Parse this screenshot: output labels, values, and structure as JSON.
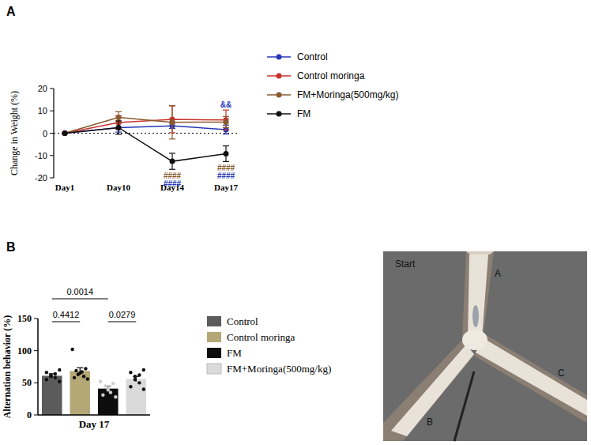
{
  "panel_labels": [
    "A",
    "B"
  ],
  "chart_data": [
    {
      "type": "line",
      "y_label": "Change in Weight (%)",
      "categories": [
        "Day1",
        "Day10",
        "Day14",
        "Day17"
      ],
      "ylim": [
        -20,
        20
      ],
      "yticks": [
        -20,
        -10,
        0,
        10,
        20
      ],
      "marker": "circle",
      "legend": "right",
      "series": [
        {
          "name": "Control",
          "color": "#2638b8",
          "values": [
            0,
            2.5,
            3.3,
            1.6
          ],
          "errors": [
            0,
            2,
            1.2,
            2
          ]
        },
        {
          "name": "Control moringa",
          "color": "#c8312b",
          "values": [
            0,
            4.8,
            6.2,
            5.9
          ],
          "errors": [
            0,
            3,
            6,
            4.5
          ]
        },
        {
          "name": "FM+Moringa(500mg/kg)",
          "color": "#8a5a2e",
          "values": [
            0,
            7.1,
            4.9,
            5
          ],
          "errors": [
            0,
            2.5,
            7.5,
            2.5
          ]
        },
        {
          "name": "FM",
          "color": "#111111",
          "values": [
            0,
            2.5,
            -12.6,
            -9.2
          ],
          "errors": [
            0,
            3,
            3.6,
            3.5
          ]
        }
      ],
      "annotations": [
        {
          "text": "####",
          "x": "Day14",
          "color": "#8a5a2e",
          "anchor": "below"
        },
        {
          "text": "####",
          "x": "Day14",
          "color": "#2638b8",
          "anchor": "below"
        },
        {
          "text": "&&",
          "x": "Day17",
          "color": "#2638b8",
          "anchor": "above"
        },
        {
          "text": "####",
          "x": "Day17",
          "color": "#8a5a2e",
          "anchor": "below"
        },
        {
          "text": "####",
          "x": "Day17",
          "color": "#2638b8",
          "anchor": "below"
        }
      ]
    },
    {
      "type": "bar",
      "y_label": "Alternation behavior (%)",
      "categories": [
        "Day 17"
      ],
      "ylim": [
        0,
        150
      ],
      "yticks": [
        0,
        50,
        100,
        150
      ],
      "legend": "right",
      "series": [
        {
          "name": "Control",
          "color": "#5b5b5b",
          "values": [
            61
          ],
          "errors": [
            3
          ],
          "points": [
            52,
            55,
            58,
            60,
            62,
            64,
            66,
            70
          ]
        },
        {
          "name": "Control moringa",
          "color": "#b4a877",
          "values": [
            68.5
          ],
          "errors": [
            5
          ],
          "points": [
            56,
            58,
            60,
            63,
            65,
            67,
            69,
            72,
            102
          ]
        },
        {
          "name": "FM",
          "color": "#0d0d0d",
          "values": [
            41
          ],
          "errors": [
            4
          ],
          "points": [
            28,
            31,
            35,
            39,
            45,
            49,
            52
          ]
        },
        {
          "name": "FM+Moringa(500mg/kg)",
          "color": "#dadada",
          "values": [
            56
          ],
          "errors": [
            4
          ],
          "points": [
            40,
            44,
            50,
            55,
            60,
            62,
            66,
            70
          ]
        }
      ],
      "annotations": [
        {
          "text": "0.0014",
          "from": 0,
          "to": 2
        },
        {
          "text": "0.4412",
          "from": 0,
          "to": 1
        },
        {
          "text": "0.0279",
          "from": 2,
          "to": 3
        }
      ]
    }
  ],
  "image": {
    "labels": [
      "Start",
      "A",
      "B",
      "C"
    ]
  }
}
